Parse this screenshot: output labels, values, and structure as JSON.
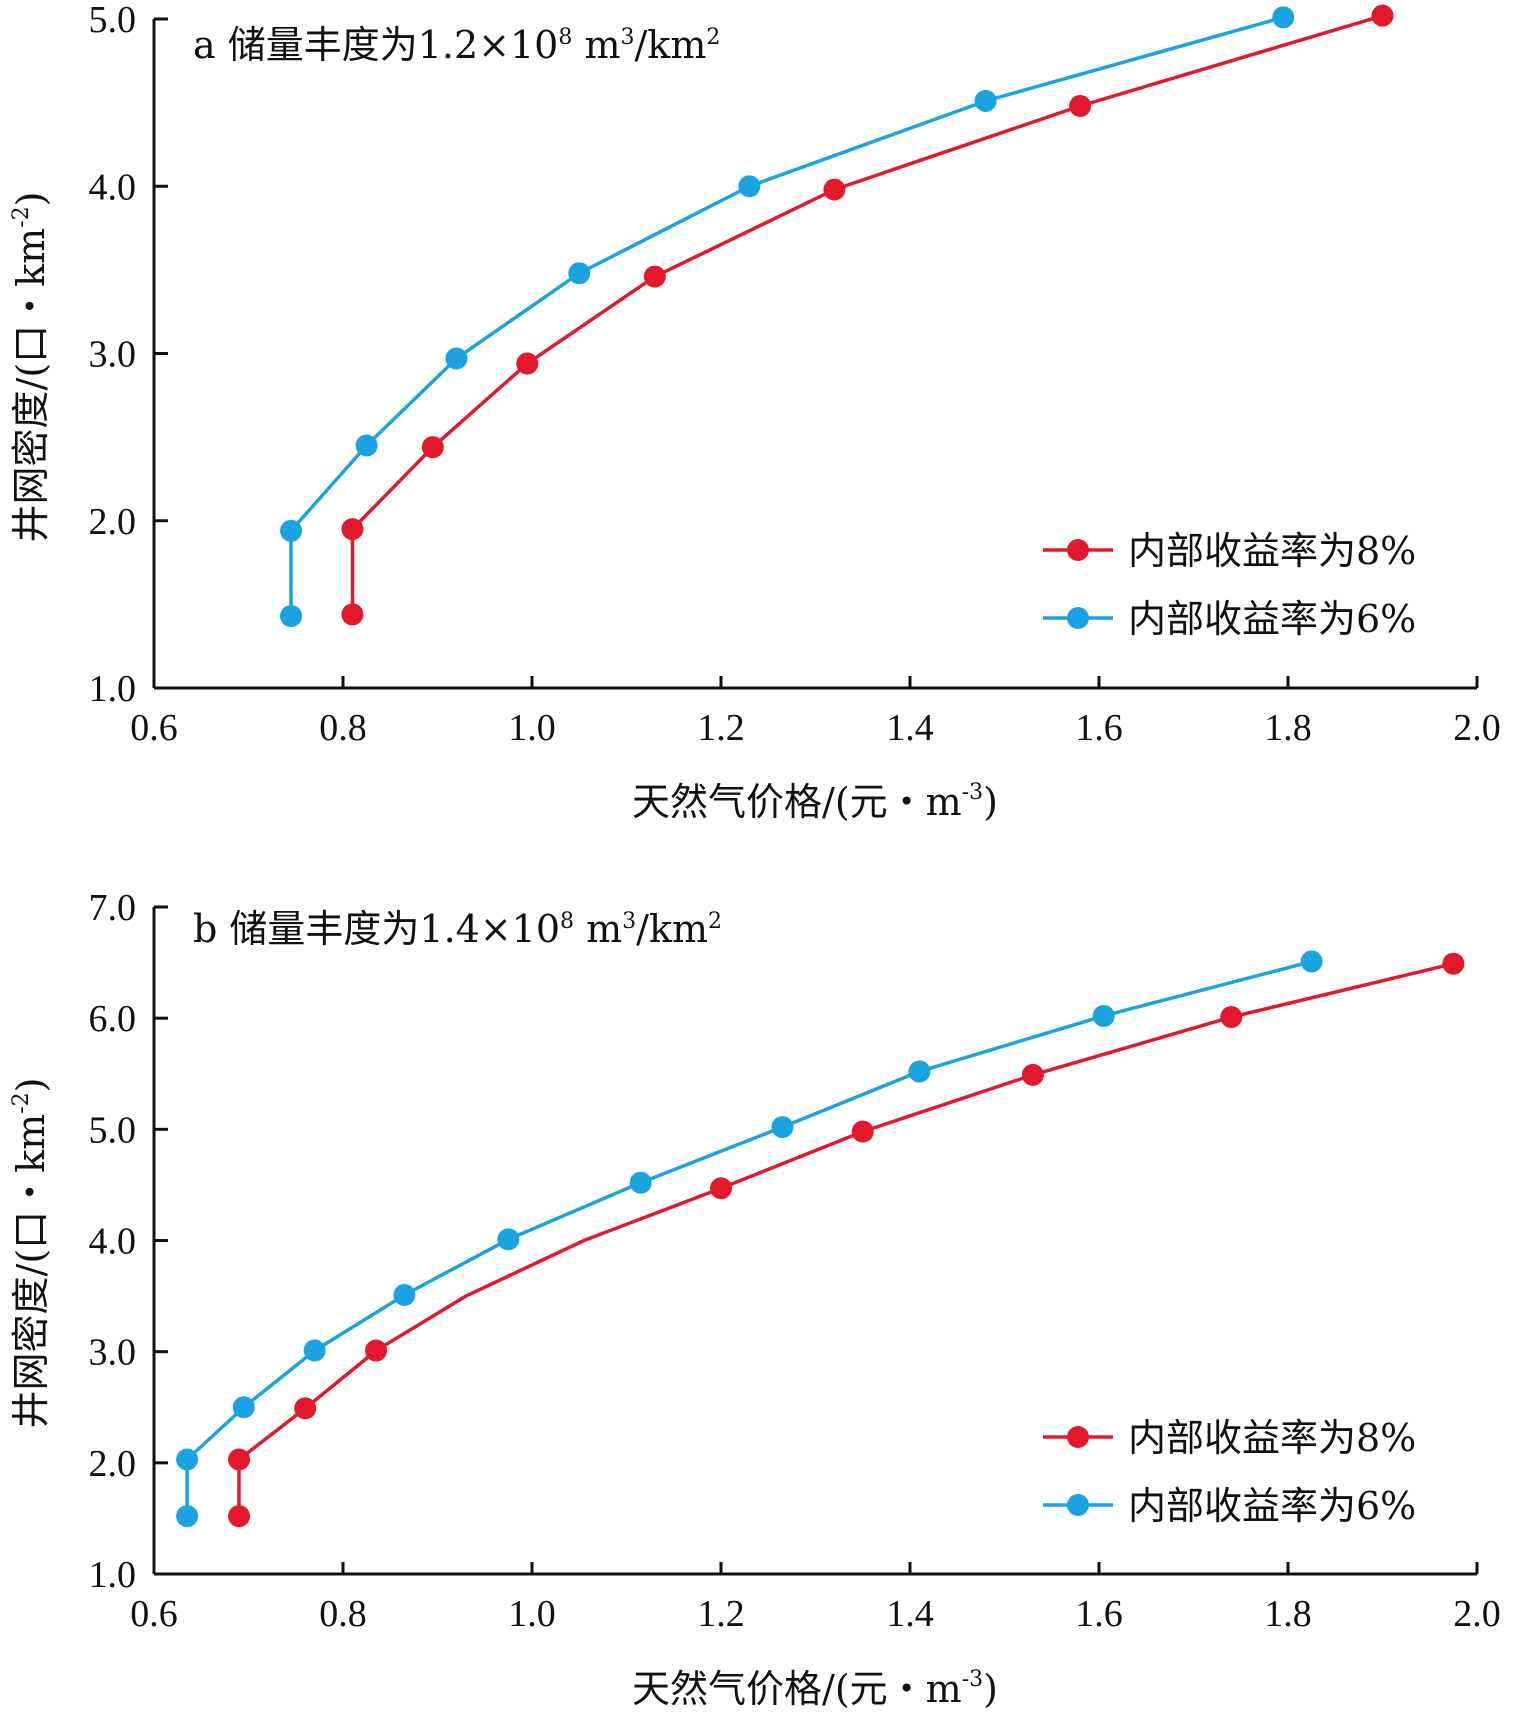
{
  "chart_data": [
    {
      "type": "line",
      "title": "a 储量丰度为1.2×10⁸ m³/km²",
      "xlabel": "天然气价格/(元・m⁻³)",
      "ylabel": "井网密度/(口・km⁻²)",
      "xlim": [
        0.6,
        2.0
      ],
      "ylim": [
        1.0,
        5.0
      ],
      "xticks": [
        "0.6",
        "0.8",
        "1.0",
        "1.2",
        "1.4",
        "1.6",
        "1.8",
        "2.0"
      ],
      "yticks": [
        "1.0",
        "2.0",
        "3.0",
        "4.0",
        "5.0"
      ],
      "legend_position": "bottom-right",
      "series": [
        {
          "name": "内部收益率为8%",
          "color": "#e3182d",
          "x": [
            0.81,
            0.81,
            0.895,
            0.995,
            1.13,
            1.32,
            1.58,
            1.9
          ],
          "y": [
            1.44,
            1.95,
            2.44,
            2.94,
            3.46,
            3.98,
            4.48,
            5.02
          ],
          "markers": [
            true,
            true,
            true,
            true,
            true,
            true,
            true,
            true
          ]
        },
        {
          "name": "内部收益率为6%",
          "color": "#1aa3e0",
          "x": [
            0.745,
            0.745,
            0.825,
            0.92,
            1.05,
            1.23,
            1.48,
            1.795
          ],
          "y": [
            1.43,
            1.94,
            2.45,
            2.97,
            3.48,
            4.0,
            4.51,
            5.01
          ],
          "markers": [
            true,
            true,
            true,
            true,
            true,
            true,
            true,
            true
          ]
        }
      ]
    },
    {
      "type": "line",
      "title": "b 储量丰度为1.4×10⁸ m³/km²",
      "xlabel": "天然气价格/(元・m⁻³)",
      "ylabel": "井网密度/(口・km⁻²)",
      "xlim": [
        0.6,
        2.0
      ],
      "ylim": [
        1.0,
        7.0
      ],
      "xticks": [
        "0.6",
        "0.8",
        "1.0",
        "1.2",
        "1.4",
        "1.6",
        "1.8",
        "2.0"
      ],
      "yticks": [
        "1.0",
        "2.0",
        "3.0",
        "4.0",
        "5.0",
        "6.0",
        "7.0"
      ],
      "legend_position": "bottom-right",
      "series": [
        {
          "name": "内部收益率为8%",
          "color": "#e3182d",
          "x": [
            0.69,
            0.69,
            0.76,
            0.835,
            0.93,
            1.055,
            1.2,
            1.35,
            1.53,
            1.74,
            1.975
          ],
          "y": [
            1.52,
            2.03,
            2.49,
            3.01,
            3.5,
            4.0,
            4.47,
            4.98,
            5.49,
            6.01,
            6.49
          ],
          "markers": [
            true,
            true,
            true,
            true,
            false,
            false,
            true,
            true,
            true,
            true,
            true
          ]
        },
        {
          "name": "内部收益率为6%",
          "color": "#1aa3e0",
          "x": [
            0.635,
            0.635,
            0.695,
            0.77,
            0.865,
            0.975,
            1.115,
            1.265,
            1.41,
            1.605,
            1.825
          ],
          "y": [
            1.52,
            2.03,
            2.5,
            3.01,
            3.51,
            4.01,
            4.52,
            5.02,
            5.52,
            6.02,
            6.51
          ],
          "markers": [
            true,
            true,
            true,
            true,
            true,
            true,
            true,
            true,
            true,
            true,
            true
          ]
        }
      ]
    }
  ],
  "panels": [
    {
      "title_prefix": "a 储量丰度为1.2×10",
      "title_exp": "8",
      "title_unit1": " m",
      "title_unit1_exp": "3",
      "title_unit2": "/km",
      "title_unit2_exp": "2"
    },
    {
      "title_prefix": "b 储量丰度为1.4×10",
      "title_exp": "8",
      "title_unit1": " m",
      "title_unit1_exp": "3",
      "title_unit2": "/km",
      "title_unit2_exp": "2"
    }
  ],
  "axis_text": {
    "x_main": "天然气价格/(元・m",
    "x_exp": "-3",
    "x_close": ")",
    "y_main": "井网密度/(口・km",
    "y_exp": "-2",
    "y_close": ")"
  }
}
